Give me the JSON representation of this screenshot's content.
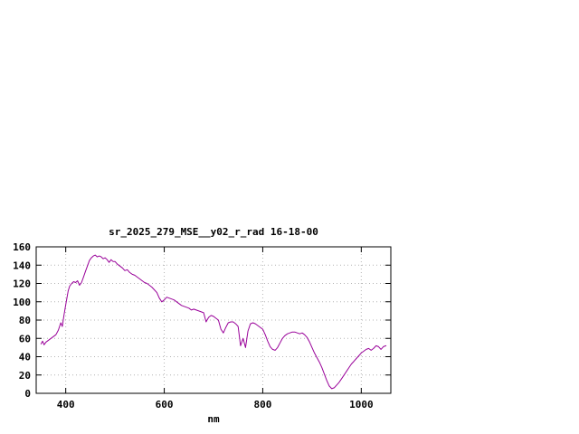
{
  "window": {
    "background": "#ffffff",
    "text_color": "#000000",
    "border_color": "#000000",
    "grid_color": "#b4b4b4"
  },
  "chart_data": {
    "type": "line",
    "title": "sr_2025_279_MSE__y02_r_rad 16-18-00",
    "xlabel": "nm",
    "ylabel": "",
    "xlim": [
      340,
      1060
    ],
    "ylim": [
      0,
      160
    ],
    "xticks": [
      400,
      600,
      800,
      1000
    ],
    "yticks": [
      0,
      20,
      40,
      60,
      80,
      100,
      120,
      140,
      160
    ],
    "grid": true,
    "legend_position": "none",
    "line_color": "#990099",
    "series": [
      {
        "name": "sr_2025_279_MSE__y02_r_rad",
        "x": [
          350,
          353,
          356,
          360,
          365,
          370,
          375,
          380,
          385,
          390,
          393,
          396,
          400,
          405,
          408,
          412,
          416,
          420,
          424,
          428,
          432,
          436,
          440,
          444,
          448,
          452,
          456,
          460,
          464,
          468,
          472,
          476,
          480,
          484,
          488,
          492,
          496,
          500,
          505,
          510,
          515,
          520,
          525,
          530,
          535,
          540,
          545,
          550,
          555,
          560,
          565,
          570,
          575,
          580,
          585,
          590,
          595,
          600,
          605,
          610,
          615,
          620,
          625,
          630,
          635,
          640,
          645,
          650,
          655,
          660,
          665,
          670,
          675,
          680,
          685,
          690,
          695,
          700,
          705,
          710,
          715,
          720,
          725,
          730,
          735,
          740,
          745,
          750,
          755,
          760,
          765,
          770,
          775,
          780,
          785,
          790,
          795,
          800,
          805,
          810,
          815,
          820,
          825,
          830,
          835,
          840,
          845,
          850,
          855,
          860,
          865,
          870,
          875,
          880,
          885,
          890,
          895,
          900,
          905,
          910,
          915,
          920,
          925,
          930,
          935,
          940,
          945,
          950,
          955,
          960,
          965,
          970,
          975,
          980,
          985,
          990,
          995,
          1000,
          1005,
          1010,
          1015,
          1020,
          1025,
          1030,
          1035,
          1040,
          1045,
          1050
        ],
        "y": [
          54,
          57,
          53,
          56,
          58,
          60,
          62,
          64,
          69,
          77,
          73,
          84,
          97,
          112,
          117,
          120,
          122,
          121,
          123,
          118,
          121,
          127,
          133,
          139,
          145,
          148,
          150,
          151,
          149,
          150,
          149,
          147,
          148,
          146,
          143,
          146,
          144,
          144,
          141,
          139,
          137,
          134,
          135,
          132,
          130,
          129,
          127,
          125,
          123,
          121,
          120,
          118,
          116,
          113,
          110,
          104,
          100,
          102,
          105,
          104,
          103,
          102,
          100,
          98,
          96,
          95,
          94,
          93,
          91,
          92,
          91,
          90,
          89,
          88,
          78,
          83,
          85,
          84,
          82,
          80,
          70,
          66,
          72,
          77,
          78,
          78,
          76,
          73,
          52,
          60,
          50,
          68,
          76,
          77,
          76,
          74,
          72,
          70,
          64,
          57,
          51,
          48,
          47,
          50,
          55,
          60,
          63,
          65,
          66,
          67,
          67,
          66,
          65,
          66,
          64,
          61,
          56,
          50,
          44,
          39,
          34,
          28,
          21,
          14,
          8,
          5,
          6,
          9,
          12,
          16,
          20,
          24,
          28,
          32,
          35,
          38,
          41,
          44,
          46,
          48,
          49,
          47,
          49,
          52,
          51,
          48,
          51,
          52
        ]
      }
    ]
  }
}
